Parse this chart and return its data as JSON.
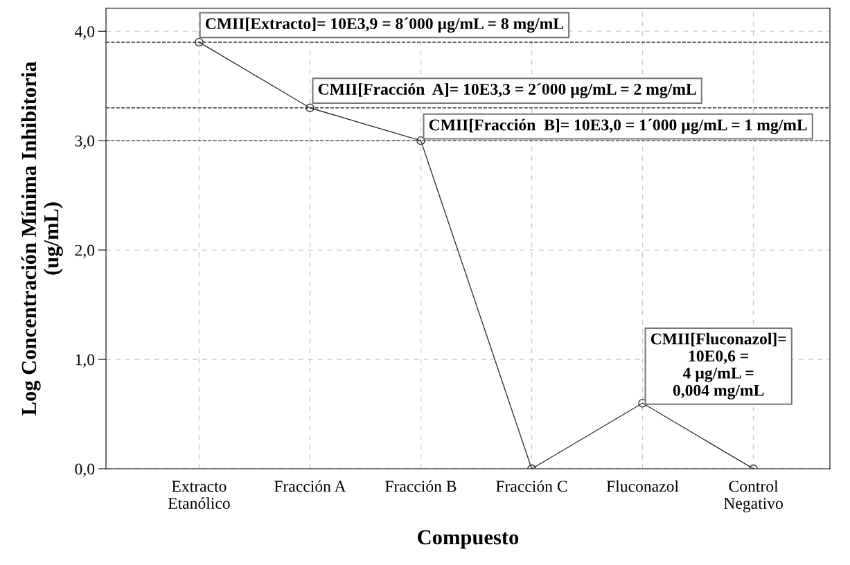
{
  "chart_data": {
    "type": "line",
    "xlabel": "Compuesto",
    "ylabel": "Log Concentración Mínima Inhibitoria\n(ug/mL)",
    "categories": [
      "Extracto\nEtanólico",
      "Fracción A",
      "Fracción B",
      "Fracción C",
      "Fluconazol",
      "Control\nNegativo"
    ],
    "series": [
      {
        "color": "#333333",
        "values": [
          3.9,
          3.3,
          3.0,
          0.0,
          0.6,
          0.0
        ]
      }
    ],
    "marker": "circle",
    "line_style": "solid",
    "grid": true,
    "ylim": [
      0,
      4.21
    ],
    "yticks": [
      {
        "value": 0,
        "label": "0,0"
      },
      {
        "value": 1,
        "label": "1,0"
      },
      {
        "value": 2,
        "label": "2,0"
      },
      {
        "value": 3,
        "label": "3,0"
      },
      {
        "value": 4,
        "label": "4,0"
      }
    ],
    "ref_lines": [
      {
        "axis": "y",
        "value": 3.9,
        "color": "#333333",
        "line_style": "dashed"
      },
      {
        "axis": "y",
        "value": 3.3,
        "color": "#333333",
        "line_style": "dashed"
      },
      {
        "axis": "y",
        "value": 3.0,
        "color": "#333333",
        "line_style": "dashed"
      }
    ],
    "annotations": [
      {
        "text": "CMII[Extracto]= 10E3,9 = 8´000 µg/mL = 8 mg/mL",
        "x": "Extracto\nEtanólico",
        "y": 3.9
      },
      {
        "text": "CMII[Fracción  A]= 10E3,3 = 2´000 µg/mL = 2 mg/mL",
        "x": "Fracción A",
        "y": 3.3
      },
      {
        "text": "CMII[Fracción  B]= 10E3,0 = 1´000 µg/mL = 1 mg/mL",
        "x": "Fracción B",
        "y": 3.0
      },
      {
        "text": "CMII[Fluconazol]=\n10E0,6 =\n4 µg/mL =\n0,004 mg/mL",
        "x": "Fluconazol",
        "y": 0.6
      }
    ]
  }
}
